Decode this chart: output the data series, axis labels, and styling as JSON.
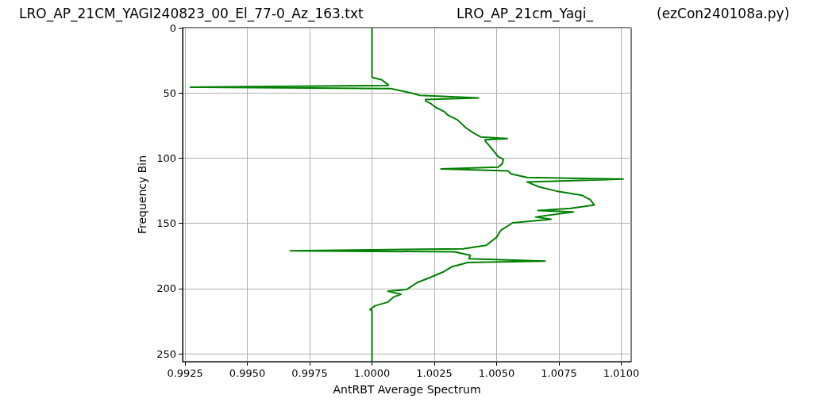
{
  "chart_data": {
    "type": "line",
    "title": "LRO_AP_21CM_YAGI240823_00_El_77-0_Az_163.txt     LRO_AP_21cm_Yagi_     (ezCon240108a.py)",
    "xlabel": "AntRBT Average Spectrum",
    "ylabel": "Frequency Bin",
    "xlim": [
      0.9924,
      1.0104
    ],
    "xticks": [
      0.9925,
      {
        "value": 0.995,
        "label": "0.9950"
      },
      0.9975,
      {
        "value": 1,
        "label": "1.0000"
      },
      1.0025,
      {
        "value": 1.005,
        "label": "1.0050"
      },
      1.0075,
      {
        "value": 1.01,
        "label": "1.0100"
      }
    ],
    "ylim": [
      256,
      0
    ],
    "yticks": [
      0,
      50,
      100,
      150,
      200,
      250
    ],
    "grid": true,
    "marker": "none",
    "line_style": "solid",
    "series": [
      {
        "color": "#008000",
        "x": [
          1.0,
          1.0,
          1.0004,
          1.00066,
          1.00064,
          0.99271,
          1.00076,
          1.00157,
          1.00192,
          1.00428,
          1.00215,
          1.00215,
          1.00233,
          1.00256,
          1.00291,
          1.00302,
          1.00343,
          1.00376,
          1.00407,
          1.00436,
          1.00543,
          1.00454,
          1.00454,
          1.00458,
          1.00483,
          1.00506,
          1.00527,
          1.00523,
          1.00506,
          1.00277,
          1.00547,
          1.00558,
          1.00622,
          1.01008,
          1.00622,
          1.00669,
          1.00739,
          1.00843,
          1.00876,
          1.00892,
          1.00797,
          1.00666,
          1.00808,
          1.00657,
          1.00718,
          1.00564,
          1.00518,
          1.005,
          1.00459,
          1.00366,
          0.99672,
          1.00331,
          1.00395,
          1.00389,
          1.00695,
          1.00384,
          1.0032,
          1.00285,
          1.00238,
          1.0018,
          1.0014,
          1.00064,
          1.00116,
          1.00087,
          1.00064,
          1.00012,
          0.99992,
          1.0,
          1.0
        ],
        "values": [
          0,
          38,
          40,
          44,
          44.3,
          45.6,
          46.7,
          50,
          51.8,
          53.8,
          55,
          56.2,
          57.8,
          61.1,
          64.4,
          66.6,
          70.6,
          76.6,
          80.6,
          83.7,
          85,
          85.9,
          86.5,
          87.6,
          93.2,
          98.7,
          100.9,
          104.2,
          106.9,
          108.2,
          109.8,
          112,
          114.8,
          116,
          118.2,
          121.9,
          125.2,
          128.5,
          131.9,
          135.9,
          138.5,
          140.1,
          141.2,
          145.1,
          146.9,
          149.6,
          155.1,
          160.6,
          166.8,
          169.5,
          171,
          171.8,
          174.5,
          177.1,
          178.9,
          180,
          183.3,
          187.3,
          191.1,
          195.5,
          200.6,
          202.1,
          204.3,
          206.5,
          210.3,
          213.2,
          216.1,
          217,
          256
        ]
      }
    ]
  }
}
